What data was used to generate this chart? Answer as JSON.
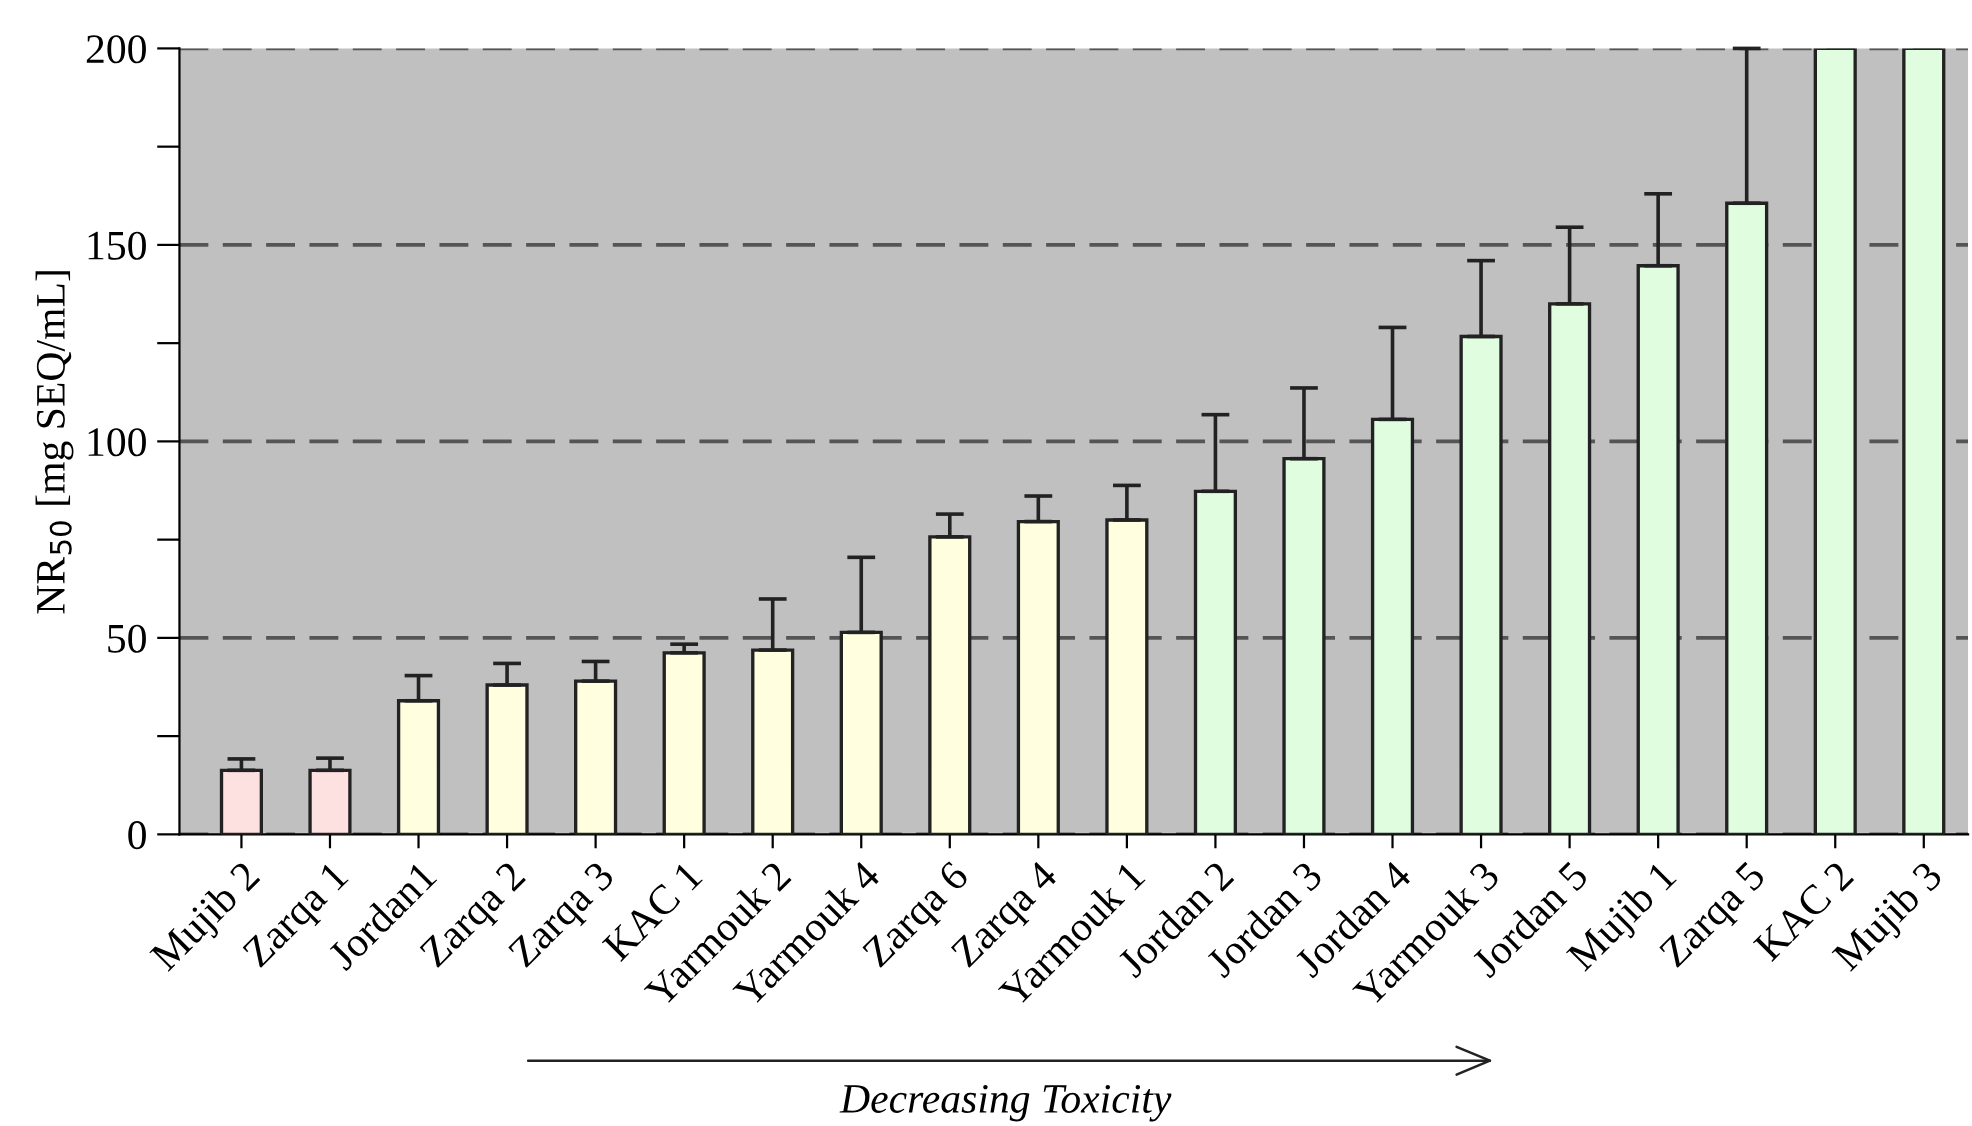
{
  "chart_data": {
    "type": "bar",
    "categories": [
      "Mujib 2",
      "Zarqa 1",
      "Jordan1",
      "Zarqa 2",
      "Zarqa 3",
      "KAC 1",
      "Yarmouk 2",
      "Yarmouk 4",
      "Zarqa 6",
      "Zarqa 4",
      "Yarmouk 1",
      "Jordan 2",
      "Jordan 3",
      "Jordan 4",
      "Yarmouk 3",
      "Jordan 5",
      "Mujib 1",
      "Zarqa 5",
      "KAC 2",
      "Mujib 3"
    ],
    "values": [
      16.3,
      16.3,
      34.0,
      38.0,
      39.0,
      46.2,
      46.9,
      51.4,
      75.7,
      79.6,
      80.0,
      87.3,
      95.6,
      105.6,
      126.7,
      135.0,
      144.7,
      160.6,
      200,
      200
    ],
    "errors": [
      [
        16.3,
        19.2
      ],
      [
        16.3,
        19.4
      ],
      [
        34.0,
        40.4
      ],
      [
        38.0,
        43.5
      ],
      [
        39.0,
        44.0
      ],
      [
        46.2,
        48.4
      ],
      [
        46.9,
        59.9
      ],
      [
        51.4,
        70.5
      ],
      [
        75.7,
        81.5
      ],
      [
        79.6,
        86.1
      ],
      [
        80.0,
        88.8
      ],
      [
        87.3,
        106.8
      ],
      [
        95.6,
        113.6
      ],
      [
        105.6,
        129.0
      ],
      [
        126.7,
        146.0
      ],
      [
        135.0,
        154.5
      ],
      [
        144.7,
        163.0
      ],
      [
        160.6,
        200
      ],
      null,
      null
    ],
    "colors": [
      "#fde0e0",
      "#fde0e0",
      "#ffffe0",
      "#ffffe0",
      "#ffffe0",
      "#ffffe0",
      "#ffffe0",
      "#ffffe0",
      "#ffffe0",
      "#ffffe0",
      "#ffffe0",
      "#e0fde0",
      "#e0fde0",
      "#e0fde0",
      "#e0fde0",
      "#e0fde0",
      "#e0fde0",
      "#e0fde0",
      "#e0fde0",
      "#e0fde0"
    ],
    "ylabel": "NR$_{50}$ [mg SEQ/mL]",
    "ylim": [
      0,
      200
    ],
    "yticks": [
      0,
      {
        "value": 25,
        "label": null
      },
      50,
      {
        "value": 75,
        "label": null
      },
      100,
      {
        "value": 125,
        "label": null
      },
      150,
      {
        "value": 175,
        "label": null
      },
      200
    ],
    "grid": "y",
    "line_style": "dashed",
    "annotations": [
      "Decreasing Toxicity"
    ]
  }
}
